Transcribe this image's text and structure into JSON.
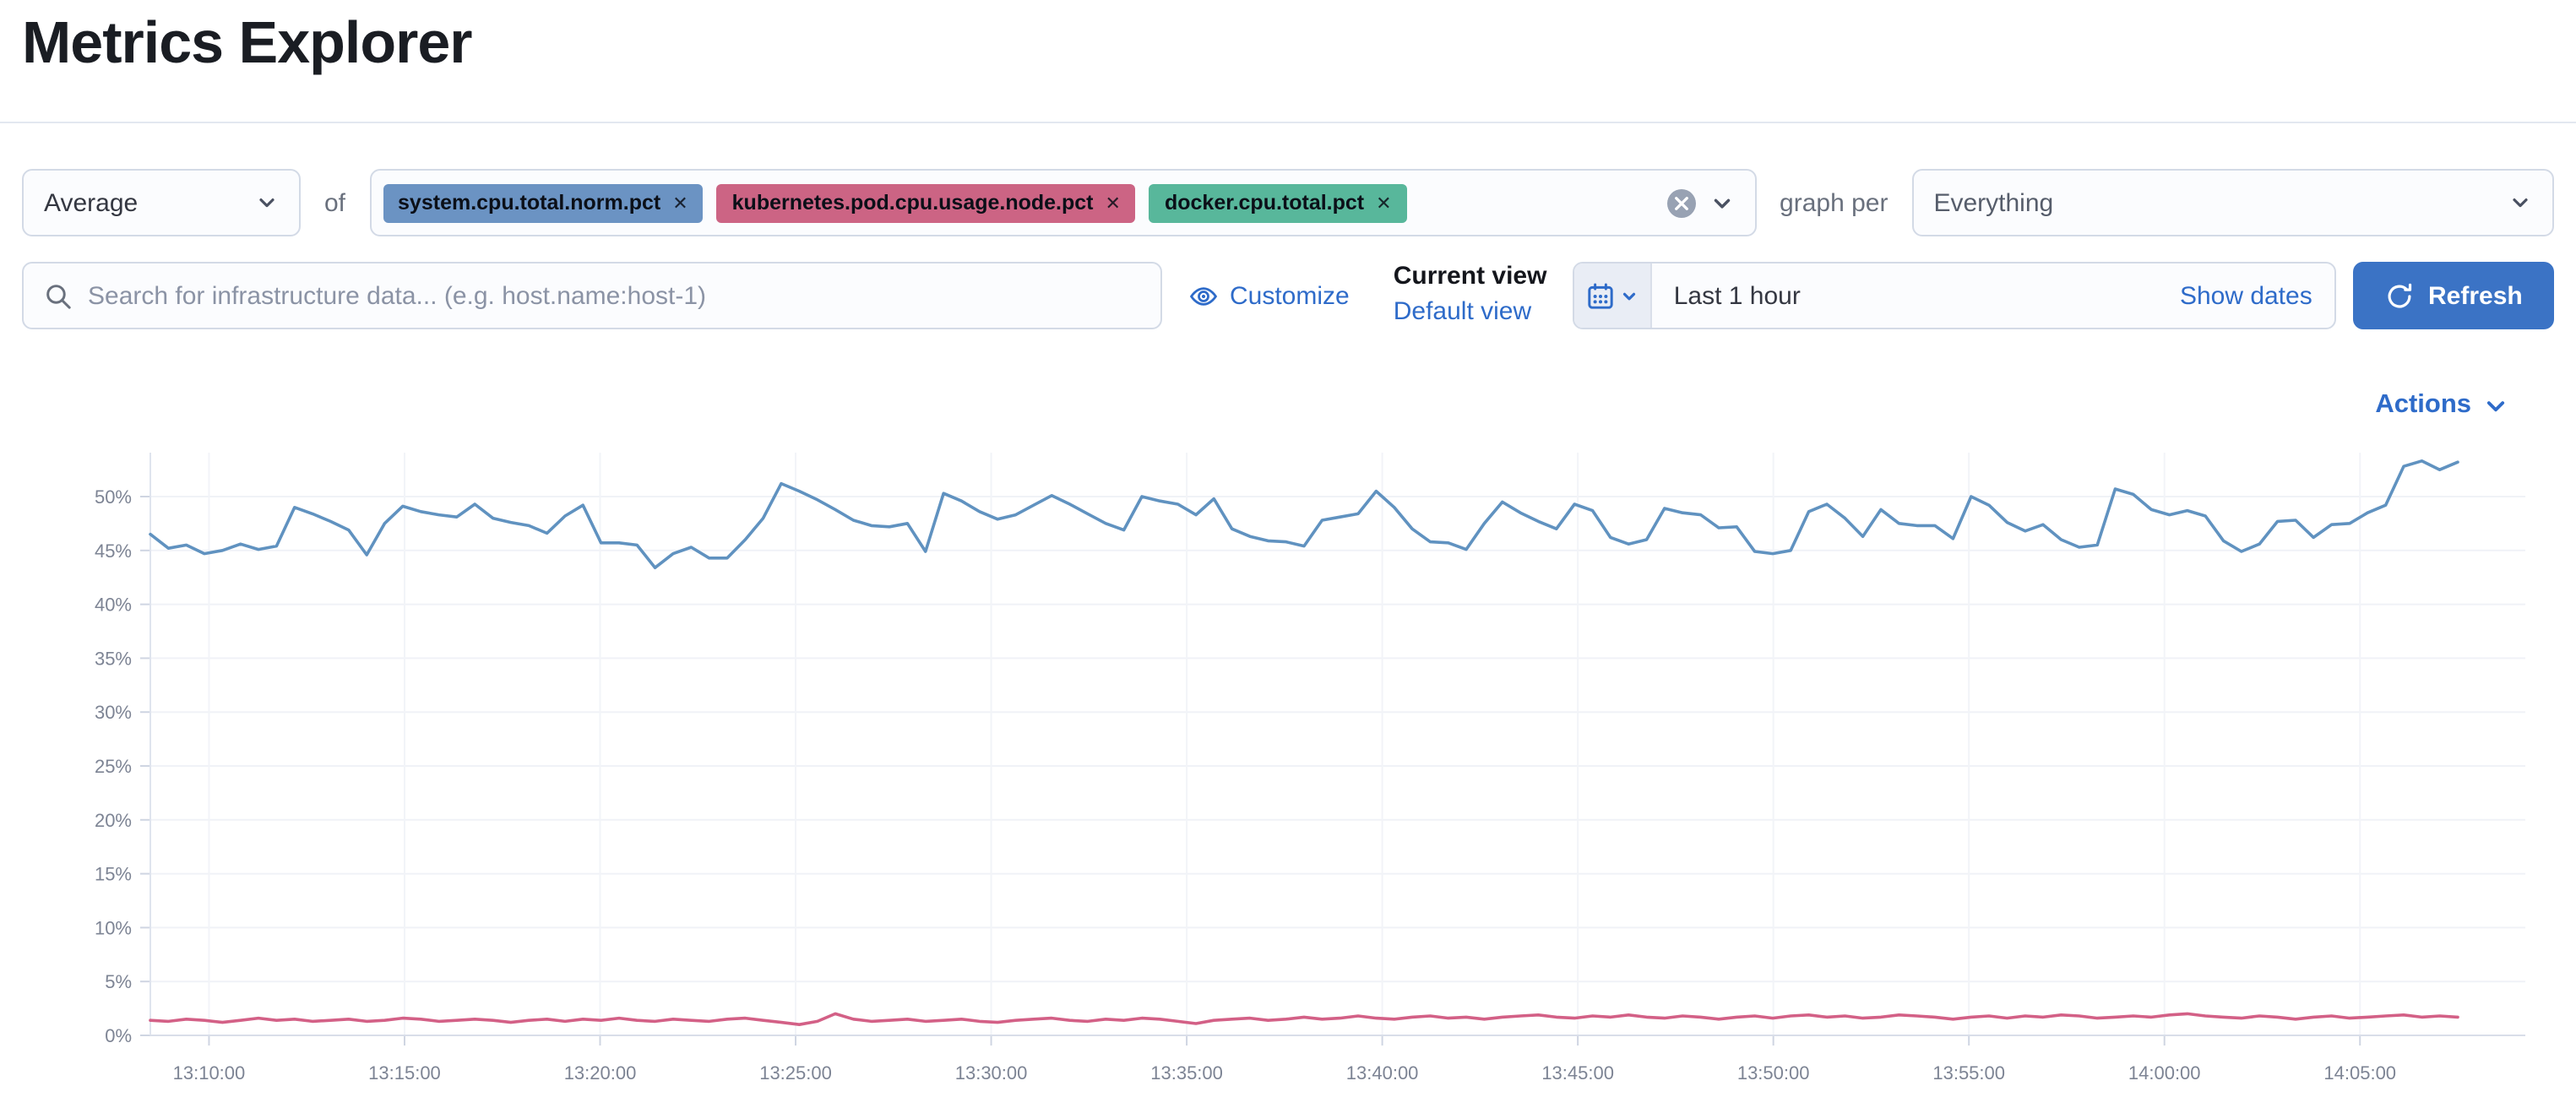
{
  "page": {
    "title": "Metrics Explorer"
  },
  "toolbar": {
    "aggregation_value": "Average",
    "of_label": "of",
    "metrics": [
      {
        "label": "system.cpu.total.norm.pct",
        "color": "#6b93c3"
      },
      {
        "label": "kubernetes.pod.cpu.usage.node.pct",
        "color": "#cc6484"
      },
      {
        "label": "docker.cpu.total.pct",
        "color": "#58b79b"
      }
    ],
    "graph_per_label": "graph per",
    "group_by_value": "Everything"
  },
  "search": {
    "placeholder": "Search for infrastructure data... (e.g. host.name:host-1)"
  },
  "view_controls": {
    "customize_label": "Customize",
    "current_view_label": "Current view",
    "view_name": "Default view"
  },
  "time_picker": {
    "range_label": "Last 1 hour",
    "show_dates_label": "Show dates",
    "refresh_label": "Refresh"
  },
  "chart_header": {
    "actions_label": "Actions"
  },
  "icons": {
    "search": "magnifier",
    "customize": "eye",
    "quick_select": "calendar",
    "refresh": "circular-arrow",
    "dropdowns": "chevron-down",
    "clear": "cross-in-circle",
    "badge_remove": "cross"
  },
  "colors": {
    "link": "#2e6bc9",
    "refresh_button": "#3b73c5",
    "control_border": "#d3dae6",
    "quick_select_bg": "#e9edf5",
    "clear_circle": "#98a2b3",
    "series_blue": "#6092C0",
    "series_pink": "#D36086"
  },
  "chart_data": {
    "type": "line",
    "title": "",
    "xlabel": "",
    "ylabel": "",
    "grid": true,
    "legend": "none",
    "ylim": [
      0,
      54.5
    ],
    "y_tick_values": [
      0,
      5,
      10,
      15,
      20,
      25,
      30,
      35,
      40,
      45,
      50
    ],
    "y_tick_labels": [
      "0%",
      "5%",
      "10%",
      "15%",
      "20%",
      "25%",
      "30%",
      "35%",
      "40%",
      "45%",
      "50%"
    ],
    "x_ticks": [
      "13:10:00",
      "13:15:00",
      "13:20:00",
      "13:25:00",
      "13:30:00",
      "13:35:00",
      "13:40:00",
      "13:45:00",
      "13:50:00",
      "13:55:00",
      "14:00:00",
      "14:05:00"
    ],
    "x_tick_offsets_minutes": [
      1.5,
      6.5,
      11.5,
      16.5,
      21.5,
      26.5,
      31.5,
      36.5,
      41.5,
      46.5,
      51.5,
      56.5
    ],
    "x_span_minutes": 59,
    "series": [
      {
        "name": "system.cpu.total.norm.pct",
        "color": "#6092C0",
        "unit": "%",
        "values": [
          46.5,
          45.2,
          45.5,
          44.7,
          45.0,
          45.6,
          45.1,
          45.4,
          49.0,
          48.4,
          47.7,
          46.9,
          44.6,
          47.5,
          49.1,
          48.6,
          48.3,
          48.1,
          49.3,
          48.0,
          47.6,
          47.3,
          46.6,
          48.2,
          49.2,
          45.7,
          45.7,
          45.5,
          43.4,
          44.7,
          45.3,
          44.3,
          44.3,
          46.0,
          48.0,
          51.2,
          50.5,
          49.7,
          48.8,
          47.8,
          47.3,
          47.2,
          47.5,
          44.9,
          50.3,
          49.6,
          48.6,
          47.9,
          48.3,
          49.2,
          50.1,
          49.3,
          48.4,
          47.5,
          46.9,
          50.0,
          49.6,
          49.3,
          48.3,
          49.8,
          47.0,
          46.3,
          45.9,
          45.8,
          45.4,
          47.8,
          48.1,
          48.4,
          50.5,
          49.0,
          47.0,
          45.8,
          45.7,
          45.1,
          47.5,
          49.5,
          48.5,
          47.7,
          47.0,
          49.3,
          48.7,
          46.2,
          45.6,
          46.0,
          48.9,
          48.5,
          48.3,
          47.1,
          47.2,
          44.9,
          44.7,
          45.0,
          48.6,
          49.3,
          48.0,
          46.3,
          48.8,
          47.5,
          47.3,
          47.3,
          46.1,
          50.0,
          49.2,
          47.6,
          46.8,
          47.4,
          46.0,
          45.3,
          45.5,
          50.7,
          50.2,
          48.8,
          48.3,
          48.7,
          48.2,
          45.9,
          44.9,
          45.6,
          47.7,
          47.8,
          46.2,
          47.4,
          47.5,
          48.5,
          49.2,
          52.8,
          53.3,
          52.5,
          53.2
        ]
      },
      {
        "name": "kubernetes.pod.cpu.usage.node.pct",
        "color": "#D36086",
        "unit": "%",
        "values": [
          1.4,
          1.3,
          1.5,
          1.4,
          1.2,
          1.4,
          1.6,
          1.4,
          1.5,
          1.3,
          1.4,
          1.5,
          1.3,
          1.4,
          1.6,
          1.5,
          1.3,
          1.4,
          1.5,
          1.4,
          1.2,
          1.4,
          1.5,
          1.3,
          1.5,
          1.4,
          1.6,
          1.4,
          1.3,
          1.5,
          1.4,
          1.3,
          1.5,
          1.6,
          1.4,
          1.2,
          1.0,
          1.3,
          2.0,
          1.5,
          1.3,
          1.4,
          1.5,
          1.3,
          1.4,
          1.5,
          1.3,
          1.2,
          1.4,
          1.5,
          1.6,
          1.4,
          1.3,
          1.5,
          1.4,
          1.6,
          1.5,
          1.3,
          1.1,
          1.4,
          1.5,
          1.6,
          1.4,
          1.5,
          1.7,
          1.5,
          1.6,
          1.8,
          1.6,
          1.5,
          1.7,
          1.8,
          1.6,
          1.7,
          1.5,
          1.7,
          1.8,
          1.9,
          1.7,
          1.6,
          1.8,
          1.7,
          1.9,
          1.7,
          1.6,
          1.8,
          1.7,
          1.5,
          1.7,
          1.8,
          1.6,
          1.8,
          1.9,
          1.7,
          1.8,
          1.6,
          1.7,
          1.9,
          1.8,
          1.7,
          1.5,
          1.7,
          1.8,
          1.6,
          1.8,
          1.7,
          1.9,
          1.8,
          1.6,
          1.7,
          1.8,
          1.7,
          1.9,
          2.0,
          1.8,
          1.7,
          1.6,
          1.8,
          1.7,
          1.5,
          1.7,
          1.8,
          1.6,
          1.7,
          1.8,
          1.9,
          1.7,
          1.8,
          1.7
        ]
      }
    ]
  }
}
